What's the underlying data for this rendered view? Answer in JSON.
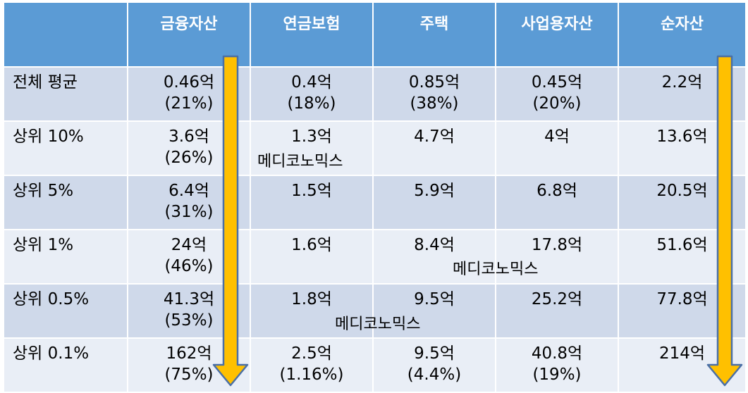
{
  "header": {
    "corner": "",
    "columns": [
      "금융자산",
      "연금보험",
      "주택",
      "사업용자산",
      "순자산"
    ]
  },
  "rows": [
    {
      "label": "전체 평균",
      "cells": [
        {
          "value": "0.46억",
          "pct": "(21%)"
        },
        {
          "value": "0.4억",
          "pct": "(18%)"
        },
        {
          "value": "0.85억",
          "pct": "(38%)"
        },
        {
          "value": "0.45억",
          "pct": "(20%)"
        },
        {
          "value": "2.2억",
          "pct": ""
        }
      ]
    },
    {
      "label": "상위 10%",
      "cells": [
        {
          "value": "3.6억",
          "pct": "(26%)"
        },
        {
          "value": "1.3억",
          "pct": ""
        },
        {
          "value": "4.7억",
          "pct": ""
        },
        {
          "value": "4억",
          "pct": ""
        },
        {
          "value": "13.6억",
          "pct": ""
        }
      ]
    },
    {
      "label": "상위 5%",
      "cells": [
        {
          "value": "6.4억",
          "pct": "(31%)"
        },
        {
          "value": "1.5억",
          "pct": ""
        },
        {
          "value": "5.9억",
          "pct": ""
        },
        {
          "value": "6.8억",
          "pct": ""
        },
        {
          "value": "20.5억",
          "pct": ""
        }
      ]
    },
    {
      "label": "상위 1%",
      "cells": [
        {
          "value": "24억",
          "pct": "(46%)"
        },
        {
          "value": "1.6억",
          "pct": ""
        },
        {
          "value": "8.4억",
          "pct": ""
        },
        {
          "value": "17.8억",
          "pct": ""
        },
        {
          "value": "51.6억",
          "pct": ""
        }
      ]
    },
    {
      "label": "상위 0.5%",
      "cells": [
        {
          "value": "41.3억",
          "pct": "(53%)"
        },
        {
          "value": "1.8억",
          "pct": ""
        },
        {
          "value": "9.5억",
          "pct": ""
        },
        {
          "value": "25.2억",
          "pct": ""
        },
        {
          "value": "77.8억",
          "pct": ""
        }
      ]
    },
    {
      "label": "상위 0.1%",
      "cells": [
        {
          "value": "162억",
          "pct": "(75%)"
        },
        {
          "value": "2.5억",
          "pct": "(1.16%)"
        },
        {
          "value": "9.5억",
          "pct": "(4.4%)"
        },
        {
          "value": "40.8억",
          "pct": "(19%)"
        },
        {
          "value": "214억",
          "pct": ""
        }
      ]
    }
  ],
  "watermarks": [
    "메디코노믹스",
    "메디코노믹스",
    "메디코노믹스"
  ],
  "colors": {
    "header_bg": "#5b9bd5",
    "row_odd": "#cfd9ea",
    "row_even": "#e9eef6",
    "arrow_fill": "#ffc000",
    "arrow_stroke": "#4a6fa5"
  }
}
